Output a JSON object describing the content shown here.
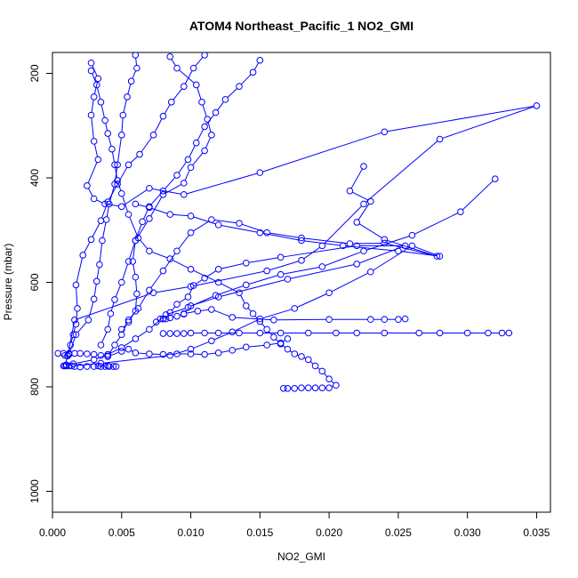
{
  "chart_data": {
    "type": "scatter",
    "title": "ATOM4 Northeast_Pacific_1 NO2_GMI",
    "xlabel": "NO2_GMI",
    "ylabel": "Pressure (mbar)",
    "xlim": [
      0,
      0.036
    ],
    "ylim": [
      1040,
      160
    ],
    "y_reversed": true,
    "x_ticks": [
      0.0,
      0.005,
      0.01,
      0.015,
      0.02,
      0.025,
      0.03,
      0.035
    ],
    "x_tick_labels": [
      "0.000",
      "0.005",
      "0.010",
      "0.015",
      "0.020",
      "0.025",
      "0.030",
      "0.035"
    ],
    "y_ticks": [
      200,
      400,
      600,
      800,
      1000
    ],
    "y_tick_labels": [
      "200",
      "400",
      "600",
      "800",
      "1000"
    ],
    "marker": "open-circle",
    "line_style": "connected",
    "color": "#0000ff",
    "grid": false,
    "series": [
      {
        "values": [
          [
            0.0004,
            736
          ],
          [
            0.0008,
            736
          ],
          [
            0.0012,
            736
          ],
          [
            0.0016,
            736
          ],
          [
            0.002,
            736
          ],
          [
            0.0025,
            737
          ],
          [
            0.003,
            738
          ],
          [
            0.0035,
            740
          ],
          [
            0.004,
            742
          ],
          [
            0.005,
            732
          ],
          [
            0.0055,
            728
          ],
          [
            0.006,
            735
          ],
          [
            0.007,
            737
          ],
          [
            0.008,
            738
          ],
          [
            0.009,
            737
          ],
          [
            0.01,
            737
          ],
          [
            0.011,
            738
          ],
          [
            0.012,
            735
          ],
          [
            0.013,
            730
          ],
          [
            0.014,
            724
          ],
          [
            0.0155,
            720
          ],
          [
            0.0165,
            716
          ],
          [
            0.017,
            708
          ]
        ]
      },
      {
        "values": [
          [
            0.001,
            760
          ],
          [
            0.0012,
            760
          ],
          [
            0.0016,
            761
          ],
          [
            0.002,
            762
          ],
          [
            0.0025,
            761
          ],
          [
            0.003,
            761
          ],
          [
            0.0035,
            761
          ],
          [
            0.0038,
            761
          ],
          [
            0.0041,
            761
          ],
          [
            0.0044,
            761
          ],
          [
            0.0046,
            761
          ],
          [
            0.004,
            760
          ],
          [
            0.0033,
            760
          ]
        ]
      },
      {
        "values": [
          [
            0.0009,
            760
          ],
          [
            0.0011,
            740
          ],
          [
            0.0013,
            720
          ],
          [
            0.0015,
            700
          ],
          [
            0.0017,
            680
          ],
          [
            0.0018,
            650
          ],
          [
            0.0017,
            605
          ],
          [
            0.0022,
            548
          ],
          [
            0.0028,
            518
          ],
          [
            0.0035,
            482
          ],
          [
            0.004,
            446
          ],
          [
            0.0047,
            412
          ],
          [
            0.0055,
            375
          ],
          [
            0.0063,
            355
          ],
          [
            0.0073,
            318
          ],
          [
            0.008,
            282
          ],
          [
            0.0086,
            255
          ],
          [
            0.0095,
            225
          ],
          [
            0.0102,
            190
          ],
          [
            0.011,
            165
          ]
        ]
      },
      {
        "values": [
          [
            0.0009,
            740
          ],
          [
            0.0012,
            738
          ],
          [
            0.0017,
            700
          ],
          [
            0.0026,
            672
          ],
          [
            0.003,
            632
          ],
          [
            0.0032,
            598
          ],
          [
            0.0034,
            566
          ],
          [
            0.0036,
            520
          ],
          [
            0.0039,
            480
          ],
          [
            0.0041,
            450
          ],
          [
            0.0045,
            412
          ],
          [
            0.0047,
            375
          ],
          [
            0.005,
            318
          ],
          [
            0.0051,
            280
          ],
          [
            0.0054,
            245
          ],
          [
            0.0057,
            215
          ],
          [
            0.0061,
            190
          ],
          [
            0.006,
            165
          ]
        ]
      },
      {
        "values": [
          [
            0.0011,
            741
          ],
          [
            0.0016,
            672
          ],
          [
            0.0073,
            620
          ],
          [
            0.01,
            608
          ],
          [
            0.0155,
            578
          ],
          [
            0.018,
            558
          ],
          [
            0.0195,
            530
          ],
          [
            0.0225,
            450
          ],
          [
            0.028,
            326
          ],
          [
            0.035,
            262
          ],
          [
            0.024,
            312
          ],
          [
            0.015,
            390
          ],
          [
            0.0095,
            432
          ],
          [
            0.007,
            420
          ],
          [
            0.005,
            455
          ],
          [
            0.0038,
            450
          ],
          [
            0.003,
            440
          ],
          [
            0.0025,
            415
          ],
          [
            0.0033,
            365
          ],
          [
            0.003,
            330
          ],
          [
            0.0028,
            280
          ],
          [
            0.003,
            245
          ],
          [
            0.0033,
            210
          ],
          [
            0.0028,
            180
          ]
        ]
      },
      {
        "values": [
          [
            0.0075,
            676
          ],
          [
            0.0078,
            670
          ],
          [
            0.008,
            670
          ],
          [
            0.0082,
            670
          ],
          [
            0.0085,
            658
          ],
          [
            0.009,
            642
          ],
          [
            0.0098,
            628
          ],
          [
            0.0102,
            606
          ],
          [
            0.011,
            592
          ],
          [
            0.012,
            575
          ],
          [
            0.014,
            563
          ],
          [
            0.0165,
            552
          ],
          [
            0.022,
            530
          ],
          [
            0.0255,
            530
          ],
          [
            0.022,
            565
          ],
          [
            0.017,
            594
          ],
          [
            0.012,
            628
          ],
          [
            0.01,
            645
          ],
          [
            0.0095,
            661
          ]
        ]
      },
      {
        "values": [
          [
            0.008,
            698
          ],
          [
            0.0085,
            698
          ],
          [
            0.009,
            698
          ],
          [
            0.0095,
            698
          ],
          [
            0.01,
            697
          ],
          [
            0.011,
            697
          ],
          [
            0.012,
            697
          ],
          [
            0.0135,
            697
          ],
          [
            0.015,
            697
          ],
          [
            0.0165,
            697
          ],
          [
            0.0185,
            697
          ],
          [
            0.0205,
            697
          ],
          [
            0.022,
            697
          ],
          [
            0.024,
            697
          ],
          [
            0.0265,
            697
          ],
          [
            0.028,
            697
          ],
          [
            0.03,
            697
          ],
          [
            0.0315,
            697
          ],
          [
            0.0325,
            697
          ],
          [
            0.033,
            697
          ]
        ]
      },
      {
        "values": [
          [
            0.008,
            670
          ],
          [
            0.0085,
            668
          ],
          [
            0.009,
            665
          ],
          [
            0.0095,
            660
          ],
          [
            0.0105,
            655
          ],
          [
            0.0115,
            652
          ],
          [
            0.013,
            667
          ],
          [
            0.016,
            672
          ],
          [
            0.02,
            671
          ],
          [
            0.023,
            671
          ],
          [
            0.024,
            671
          ],
          [
            0.025,
            671
          ],
          [
            0.0255,
            670
          ]
        ]
      },
      {
        "values": [
          [
            0.0167,
            803
          ],
          [
            0.017,
            803
          ],
          [
            0.0175,
            803
          ],
          [
            0.018,
            802
          ],
          [
            0.0185,
            802
          ],
          [
            0.019,
            802
          ],
          [
            0.0195,
            802
          ],
          [
            0.02,
            802
          ],
          [
            0.0205,
            797
          ],
          [
            0.02,
            785
          ],
          [
            0.0195,
            770
          ],
          [
            0.019,
            760
          ],
          [
            0.0185,
            748
          ],
          [
            0.018,
            742
          ],
          [
            0.0175,
            737
          ],
          [
            0.017,
            728
          ],
          [
            0.0165,
            718
          ],
          [
            0.016,
            705
          ],
          [
            0.0155,
            690
          ],
          [
            0.015,
            675
          ],
          [
            0.0145,
            660
          ],
          [
            0.014,
            645
          ],
          [
            0.0135,
            620
          ],
          [
            0.012,
            600
          ],
          [
            0.01,
            575
          ],
          [
            0.0085,
            555
          ],
          [
            0.007,
            540
          ],
          [
            0.0062,
            515
          ],
          [
            0.0055,
            470
          ],
          [
            0.005,
            430
          ],
          [
            0.0047,
            405
          ],
          [
            0.0045,
            375
          ],
          [
            0.0043,
            345
          ],
          [
            0.004,
            315
          ],
          [
            0.0038,
            290
          ],
          [
            0.0035,
            255
          ],
          [
            0.0032,
            222
          ],
          [
            0.0028,
            195
          ]
        ]
      },
      {
        "values": [
          [
            0.005,
            690
          ],
          [
            0.0055,
            676
          ],
          [
            0.006,
            655
          ],
          [
            0.0061,
            622
          ],
          [
            0.006,
            590
          ],
          [
            0.0058,
            560
          ],
          [
            0.006,
            520
          ],
          [
            0.007,
            478
          ],
          [
            0.008,
            432
          ],
          [
            0.0095,
            410
          ],
          [
            0.01,
            380
          ],
          [
            0.011,
            348
          ],
          [
            0.0115,
            318
          ],
          [
            0.0112,
            288
          ],
          [
            0.0108,
            255
          ],
          [
            0.0104,
            222
          ],
          [
            0.009,
            190
          ],
          [
            0.0085,
            168
          ]
        ]
      },
      {
        "values": [
          [
            0.001,
            758
          ],
          [
            0.0014,
            760
          ],
          [
            0.0035,
            755
          ],
          [
            0.0085,
            740
          ],
          [
            0.01,
            728
          ],
          [
            0.0115,
            712
          ],
          [
            0.013,
            695
          ],
          [
            0.015,
            670
          ],
          [
            0.0175,
            650
          ],
          [
            0.02,
            620
          ],
          [
            0.023,
            580
          ],
          [
            0.026,
            530
          ],
          [
            0.028,
            550
          ],
          [
            0.025,
            540
          ],
          [
            0.021,
            530
          ],
          [
            0.018,
            520
          ],
          [
            0.015,
            505
          ],
          [
            0.012,
            490
          ],
          [
            0.01,
            473
          ],
          [
            0.0085,
            470
          ],
          [
            0.007,
            457
          ],
          [
            0.006,
            450
          ]
        ]
      },
      {
        "values": [
          [
            0.0008,
            760
          ],
          [
            0.0015,
            756
          ],
          [
            0.003,
            748
          ],
          [
            0.004,
            738
          ],
          [
            0.005,
            725
          ],
          [
            0.006,
            708
          ],
          [
            0.007,
            690
          ],
          [
            0.0082,
            662
          ],
          [
            0.0098,
            648
          ],
          [
            0.0118,
            625
          ],
          [
            0.014,
            605
          ],
          [
            0.0165,
            585
          ],
          [
            0.0195,
            570
          ],
          [
            0.0225,
            540
          ],
          [
            0.026,
            510
          ],
          [
            0.0295,
            465
          ],
          [
            0.032,
            402
          ]
        ]
      },
      {
        "values": [
          [
            0.004,
            741
          ],
          [
            0.0045,
            720
          ],
          [
            0.005,
            700
          ],
          [
            0.0055,
            672
          ],
          [
            0.0062,
            650
          ],
          [
            0.007,
            615
          ],
          [
            0.008,
            578
          ],
          [
            0.009,
            540
          ],
          [
            0.01,
            505
          ],
          [
            0.0115,
            480
          ],
          [
            0.0135,
            487
          ],
          [
            0.0155,
            505
          ],
          [
            0.018,
            515
          ],
          [
            0.0215,
            526
          ],
          [
            0.024,
            525
          ],
          [
            0.0278,
            550
          ],
          [
            0.024,
            518
          ],
          [
            0.022,
            485
          ],
          [
            0.023,
            445
          ],
          [
            0.0215,
            425
          ],
          [
            0.0225,
            378
          ]
        ]
      },
      {
        "values": [
          [
            0.0035,
            720
          ],
          [
            0.004,
            690
          ],
          [
            0.0042,
            660
          ],
          [
            0.0045,
            633
          ],
          [
            0.005,
            600
          ],
          [
            0.0055,
            560
          ],
          [
            0.006,
            520
          ],
          [
            0.0065,
            484
          ],
          [
            0.007,
            455
          ],
          [
            0.008,
            425
          ],
          [
            0.009,
            395
          ],
          [
            0.0098,
            365
          ],
          [
            0.0104,
            333
          ],
          [
            0.011,
            302
          ],
          [
            0.0118,
            275
          ],
          [
            0.0125,
            250
          ],
          [
            0.0135,
            225
          ],
          [
            0.0145,
            198
          ],
          [
            0.015,
            175
          ]
        ]
      }
    ]
  }
}
